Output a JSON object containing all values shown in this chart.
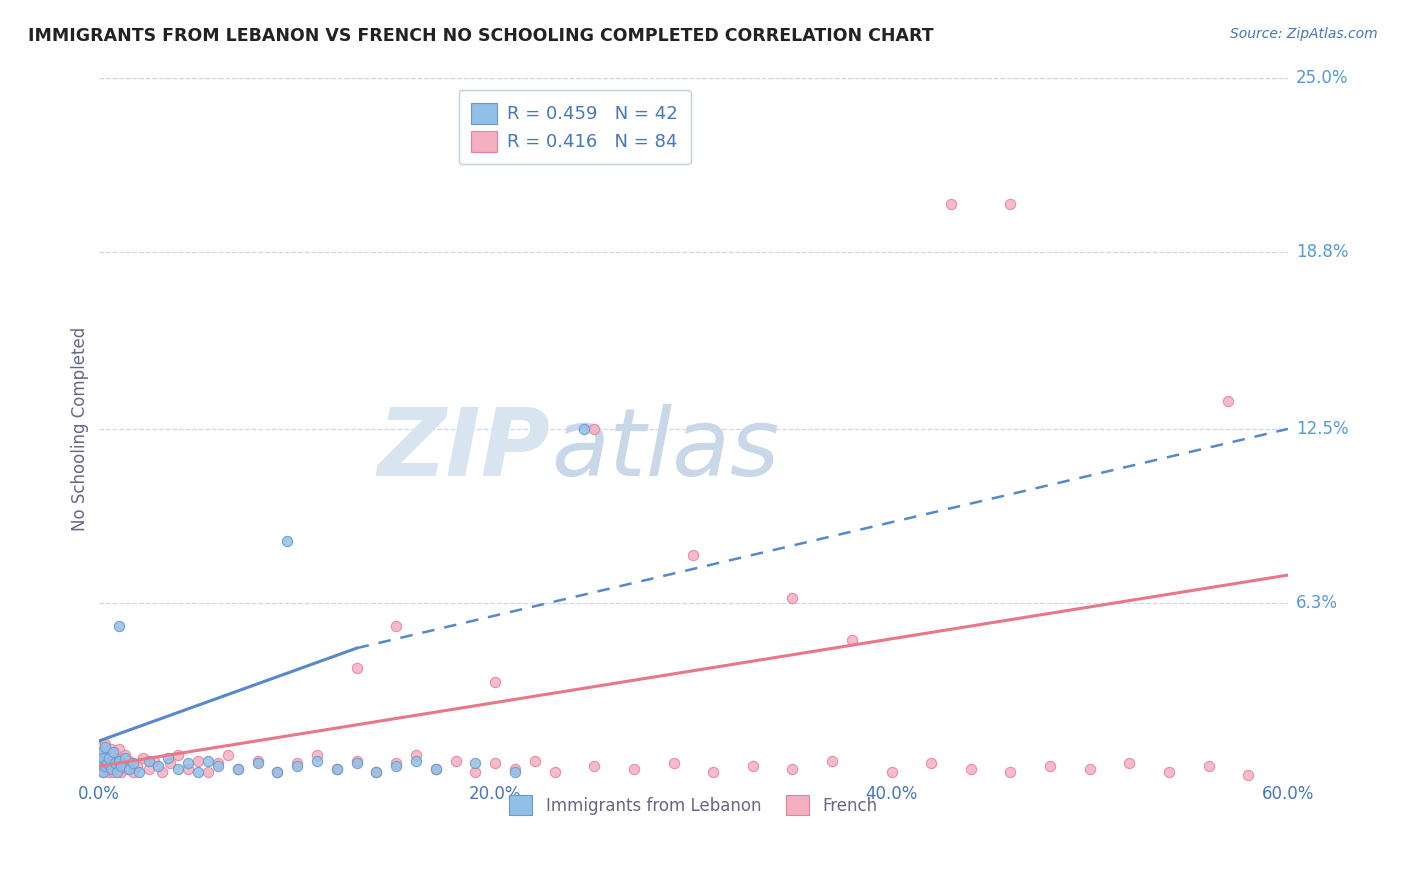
{
  "title": "IMMIGRANTS FROM LEBANON VS FRENCH NO SCHOOLING COMPLETED CORRELATION CHART",
  "source_text": "Source: ZipAtlas.com",
  "ylabel": "No Schooling Completed",
  "legend_top_labels": [
    "R = 0.459   N = 42",
    "R = 0.416   N = 84"
  ],
  "legend_bottom": [
    "Immigrants from Lebanon",
    "French"
  ],
  "xlim": [
    0.0,
    0.6
  ],
  "ylim": [
    0.0,
    0.25
  ],
  "xtick_labels": [
    "0.0%",
    "20.0%",
    "40.0%",
    "60.0%"
  ],
  "xtick_vals": [
    0.0,
    0.2,
    0.4,
    0.6
  ],
  "ytick_labels": [
    "25.0%",
    "18.8%",
    "12.5%",
    "6.3%"
  ],
  "ytick_vals": [
    0.25,
    0.188,
    0.125,
    0.063
  ],
  "color_blue": "#92bfe8",
  "color_blue_edge": "#6699cc",
  "color_pink": "#f4afc0",
  "color_pink_edge": "#e8809a",
  "color_blue_line": "#5588cc",
  "color_pink_line": "#e87888",
  "title_color": "#222222",
  "axis_label_color": "#666688",
  "tick_color": "#4477bb",
  "ytick_color": "#5599dd",
  "watermark_zip_color": "#d8e4f0",
  "watermark_atlas_color": "#c8d8e8",
  "blue_solid_line_x": [
    0.0,
    0.13
  ],
  "blue_solid_line_y": [
    0.014,
    0.047
  ],
  "blue_dash_line_x": [
    0.13,
    0.6
  ],
  "blue_dash_line_y": [
    0.047,
    0.125
  ],
  "pink_solid_line_x": [
    0.0,
    0.6
  ],
  "pink_solid_line_y": [
    0.005,
    0.073
  ],
  "blue_scatter_x": [
    0.001,
    0.001,
    0.002,
    0.002,
    0.003,
    0.003,
    0.004,
    0.005,
    0.006,
    0.007,
    0.008,
    0.009,
    0.01,
    0.011,
    0.013,
    0.015,
    0.017,
    0.02,
    0.025,
    0.03,
    0.035,
    0.04,
    0.045,
    0.05,
    0.055,
    0.06,
    0.07,
    0.08,
    0.09,
    0.095,
    0.1,
    0.11,
    0.12,
    0.13,
    0.14,
    0.15,
    0.16,
    0.17,
    0.19,
    0.21,
    0.245,
    0.01
  ],
  "blue_scatter_y": [
    0.005,
    0.01,
    0.003,
    0.008,
    0.005,
    0.012,
    0.006,
    0.008,
    0.004,
    0.01,
    0.006,
    0.003,
    0.007,
    0.005,
    0.008,
    0.004,
    0.006,
    0.003,
    0.007,
    0.005,
    0.008,
    0.004,
    0.006,
    0.003,
    0.007,
    0.005,
    0.004,
    0.006,
    0.003,
    0.085,
    0.005,
    0.007,
    0.004,
    0.006,
    0.003,
    0.005,
    0.007,
    0.004,
    0.006,
    0.003,
    0.125,
    0.055
  ],
  "pink_scatter_x": [
    0.001,
    0.001,
    0.001,
    0.002,
    0.002,
    0.002,
    0.003,
    0.003,
    0.003,
    0.004,
    0.004,
    0.005,
    0.005,
    0.006,
    0.006,
    0.007,
    0.007,
    0.008,
    0.008,
    0.009,
    0.01,
    0.01,
    0.011,
    0.012,
    0.013,
    0.014,
    0.015,
    0.017,
    0.019,
    0.022,
    0.025,
    0.028,
    0.032,
    0.036,
    0.04,
    0.045,
    0.05,
    0.055,
    0.06,
    0.065,
    0.07,
    0.08,
    0.09,
    0.1,
    0.11,
    0.12,
    0.13,
    0.14,
    0.15,
    0.16,
    0.17,
    0.18,
    0.19,
    0.2,
    0.21,
    0.22,
    0.23,
    0.25,
    0.27,
    0.29,
    0.31,
    0.33,
    0.35,
    0.37,
    0.4,
    0.42,
    0.44,
    0.46,
    0.48,
    0.5,
    0.52,
    0.54,
    0.56,
    0.58,
    0.43,
    0.46,
    0.57,
    0.3,
    0.35,
    0.38,
    0.13,
    0.15,
    0.2,
    0.25
  ],
  "pink_scatter_y": [
    0.005,
    0.008,
    0.012,
    0.003,
    0.007,
    0.01,
    0.005,
    0.008,
    0.013,
    0.004,
    0.009,
    0.003,
    0.007,
    0.011,
    0.005,
    0.008,
    0.003,
    0.006,
    0.01,
    0.004,
    0.007,
    0.011,
    0.003,
    0.006,
    0.009,
    0.004,
    0.007,
    0.003,
    0.005,
    0.008,
    0.004,
    0.007,
    0.003,
    0.006,
    0.009,
    0.004,
    0.007,
    0.003,
    0.006,
    0.009,
    0.004,
    0.007,
    0.003,
    0.006,
    0.009,
    0.004,
    0.007,
    0.003,
    0.006,
    0.009,
    0.004,
    0.007,
    0.003,
    0.006,
    0.004,
    0.007,
    0.003,
    0.005,
    0.004,
    0.006,
    0.003,
    0.005,
    0.004,
    0.007,
    0.003,
    0.006,
    0.004,
    0.003,
    0.005,
    0.004,
    0.006,
    0.003,
    0.005,
    0.002,
    0.205,
    0.205,
    0.135,
    0.08,
    0.065,
    0.05,
    0.04,
    0.055,
    0.035,
    0.125
  ],
  "figsize": [
    14.06,
    8.92
  ],
  "dpi": 100
}
